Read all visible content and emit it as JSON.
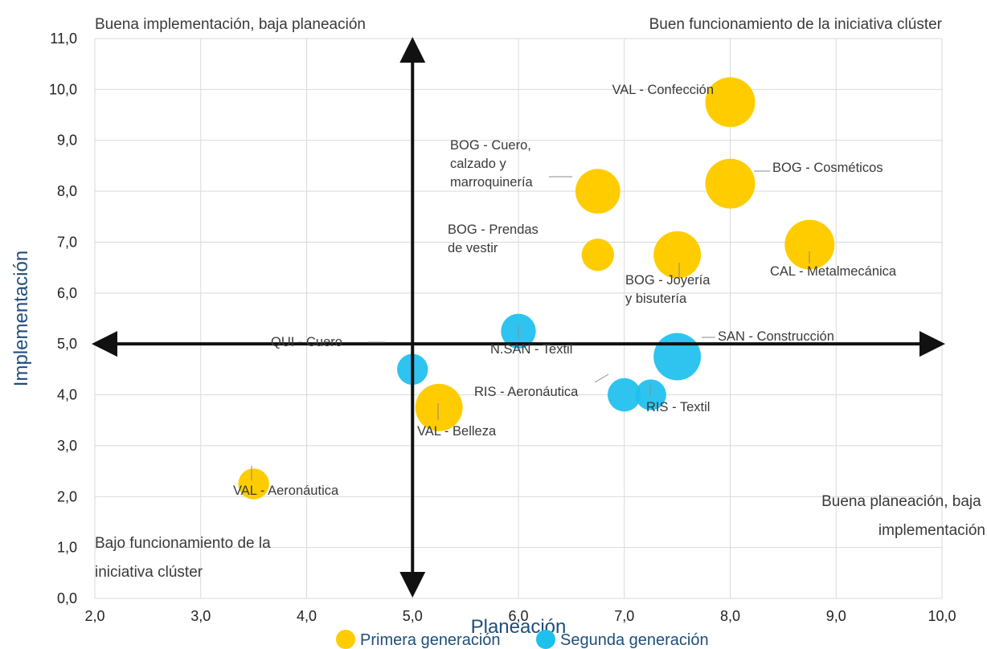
{
  "chart_data": {
    "type": "scatter",
    "subtype": "bubble",
    "xlabel": "Planeación",
    "ylabel": "Implementación",
    "xlim": [
      2,
      10
    ],
    "ylim": [
      0,
      11
    ],
    "x_ticks": [
      "2,0",
      "3,0",
      "4,0",
      "5,0",
      "6,0",
      "7,0",
      "8,0",
      "9,0",
      "10,0"
    ],
    "y_ticks": [
      "0,0",
      "1,0",
      "2,0",
      "3,0",
      "4,0",
      "5,0",
      "6,0",
      "7,0",
      "8,0",
      "9,0",
      "10,0",
      "11,0"
    ],
    "grid": true,
    "reference_lines": {
      "x": 5,
      "y": 5
    },
    "quadrants": {
      "top_left": "Buena implementación, baja planeación",
      "top_right": "Buen funcionamiento de la iniciativa clúster",
      "bottom_left": [
        "Bajo funcionamiento de la",
        "iniciativa clúster"
      ],
      "bottom_right": [
        "Buena planeación, baja",
        "implementación"
      ]
    },
    "legend_position": "bottom",
    "series": [
      {
        "name": "Primera generación",
        "color": "#FFCC00",
        "points": [
          {
            "label": [
              "VAL - Confección"
            ],
            "x": 8.0,
            "y": 9.75,
            "size": 1.0
          },
          {
            "label": [
              "BOG - Cosméticos"
            ],
            "x": 8.0,
            "y": 8.15,
            "size": 1.0
          },
          {
            "label": [
              "BOG - Cuero,",
              "calzado y",
              "marroquinería"
            ],
            "x": 6.75,
            "y": 8.0,
            "size": 0.9
          },
          {
            "label": [
              "BOG - Prendas",
              "de vestir"
            ],
            "x": 6.75,
            "y": 6.75,
            "size": 0.65
          },
          {
            "label": [
              "BOG - Joyería",
              "y bisutería"
            ],
            "x": 7.5,
            "y": 6.75,
            "size": 0.95
          },
          {
            "label": [
              "CAL - Metalmecánica"
            ],
            "x": 8.75,
            "y": 6.95,
            "size": 1.0
          },
          {
            "label": [
              "VAL - Belleza"
            ],
            "x": 5.25,
            "y": 3.75,
            "size": 0.95
          },
          {
            "label": [
              "VAL - Aeronáutica"
            ],
            "x": 3.5,
            "y": 2.25,
            "size": 0.62
          }
        ]
      },
      {
        "name": "Segunda generación",
        "color": "#1EC0EE",
        "points": [
          {
            "label": [
              "N.SAN - Textil"
            ],
            "x": 6.0,
            "y": 5.25,
            "size": 0.7
          },
          {
            "label": [
              "QUI - Cuero"
            ],
            "x": 5.0,
            "y": 4.5,
            "size": 0.62
          },
          {
            "label": [
              "SAN - Construcción"
            ],
            "x": 7.5,
            "y": 4.75,
            "size": 0.95
          },
          {
            "label": [
              "RIS - Aeronáutica"
            ],
            "x": 7.0,
            "y": 4.0,
            "size": 0.67
          },
          {
            "label": [
              "RIS - Textil"
            ],
            "x": 7.25,
            "y": 4.0,
            "size": 0.62
          }
        ]
      }
    ]
  }
}
